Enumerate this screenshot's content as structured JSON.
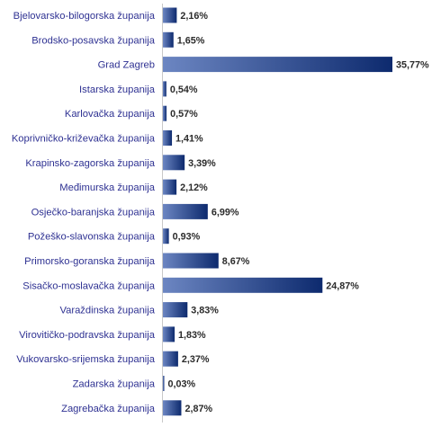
{
  "chart_data": {
    "type": "bar",
    "orientation": "horizontal",
    "categories": [
      "Bjelovarsko-bilogorska županija",
      "Brodsko-posavska županija",
      "Grad Zagreb",
      "Istarska županija",
      "Karlovačka županija",
      "Koprivničko-križevačka županija",
      "Krapinsko-zagorska županija",
      "Međimurska županija",
      "Osječko-baranjska županija",
      "Požeško-slavonska županija",
      "Primorsko-goranska županija",
      "Sisačko-moslavačka županija",
      "Varaždinska županija",
      "Virovitičko-podravska županija",
      "Vukovarsko-srijemska županija",
      "Zadarska županija",
      "Zagrebačka županija"
    ],
    "values": [
      2.16,
      1.65,
      35.77,
      0.54,
      0.57,
      1.41,
      3.39,
      2.12,
      6.99,
      0.93,
      8.67,
      24.87,
      3.83,
      1.83,
      2.37,
      0.03,
      2.87
    ],
    "value_labels": [
      "2,16%",
      "1,65%",
      "35,77%",
      "0,54%",
      "0,57%",
      "1,41%",
      "3,39%",
      "2,12%",
      "6,99%",
      "0,93%",
      "8,67%",
      "24,87%",
      "3,83%",
      "1,83%",
      "2,37%",
      "0,03%",
      "2,87%"
    ],
    "title": "",
    "xlabel": "",
    "ylabel": "",
    "xlim": [
      0,
      35.77
    ],
    "grid": false,
    "legend": "none",
    "colors": {
      "bar_start": "#6c86c2",
      "bar_end": "#0d2a6e",
      "category_text": "#2e3192",
      "value_text": "#2b2b2b",
      "axis": "#c8c8c8"
    }
  }
}
